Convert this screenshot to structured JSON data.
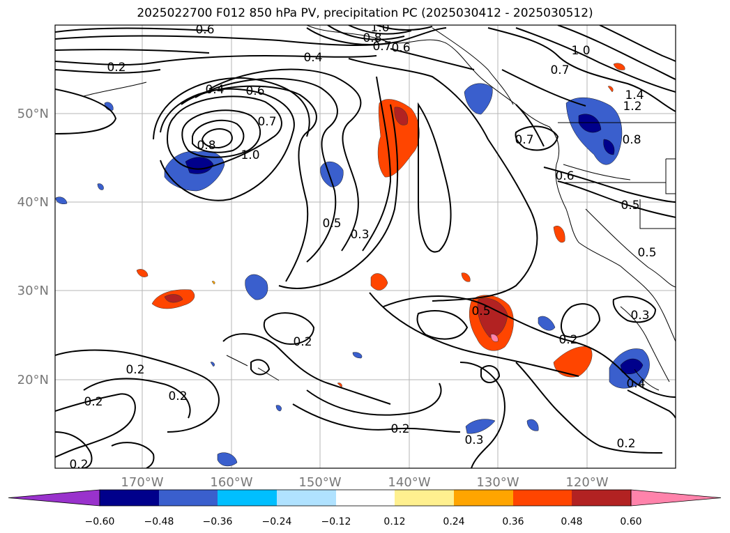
{
  "title": "2025022700 F012 850 hPa PV, precipitation PC (2025030412 - 2025030512)",
  "lon_labels": [
    "170°W",
    "160°W",
    "150°W",
    "140°W",
    "130°W",
    "120°W"
  ],
  "lat_labels": [
    "50°N",
    "40°N",
    "30°N",
    "20°N"
  ],
  "colorbar": {
    "colors": [
      "#9932cc",
      "#00008b",
      "#3a5fcd",
      "#00bfff",
      "#b0e2ff",
      "#ffffff",
      "#fff08f",
      "#ffa500",
      "#ff4500",
      "#b22222",
      "#ff83ab"
    ],
    "tick_labels": [
      "−0.60",
      "−0.48",
      "−0.36",
      "−0.24",
      "−0.12",
      "0.12",
      "0.24",
      "0.36",
      "0.48",
      "0.60"
    ]
  },
  "contour_labels": [
    "0.6",
    "1.0",
    "0.8",
    "0.7",
    "0.6",
    "0.4",
    "0.2",
    "0.4",
    "0.6",
    "0.7",
    "1.0",
    "0.8",
    "0.5",
    "0.3",
    "0.2",
    "0.2",
    "0.2",
    "0.2",
    "0.5",
    "0.2",
    "0.2",
    "0.3",
    "0.2",
    "1.0",
    "0.7",
    "1.4",
    "1.2",
    "0.7",
    "0.8",
    "0.6",
    "0.5",
    "0.5",
    "0.3",
    "0.4",
    "0.2"
  ]
}
